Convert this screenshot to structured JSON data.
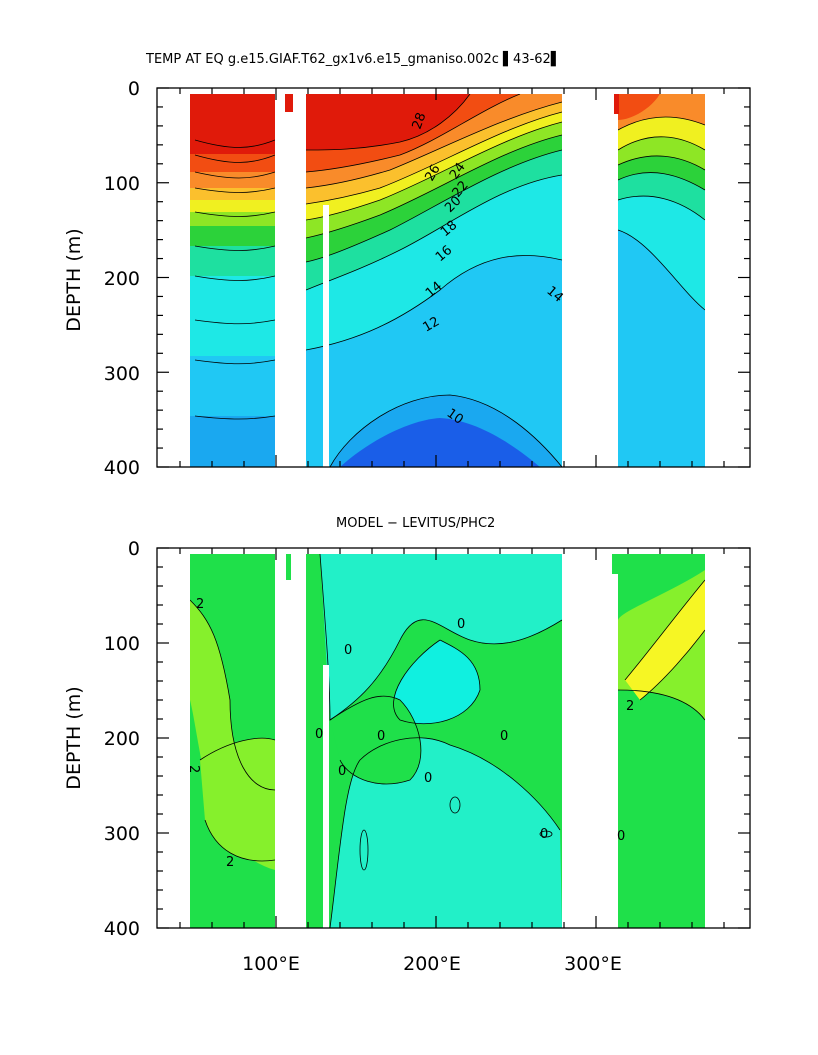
{
  "chart_data": [
    {
      "type": "contour",
      "title": "TEMP AT EQ g.e15.GIAF.T62_gx1v6.e15_gmaniso.002c ▌43-62▌",
      "ylabel": "DEPTH (m)",
      "ylim": [
        0,
        400
      ],
      "y_inverted": true,
      "y_ticks": [
        "0",
        "100",
        "200",
        "300",
        "400"
      ],
      "x_tick_labels": [],
      "land_gaps": [
        [
          98,
          120
        ],
        [
          278,
          315
        ]
      ],
      "bands": [
        {
          "depth_top": 0,
          "depth_bottom": 60,
          "temp": 28,
          "color": "#e01a0a"
        },
        {
          "depth_top": 60,
          "depth_bottom": 90,
          "temp": 26,
          "color": "#f24d12"
        },
        {
          "depth_top": 90,
          "depth_bottom": 110,
          "temp": 24,
          "color": "#f98b2a"
        },
        {
          "depth_top": 110,
          "depth_bottom": 120,
          "temp": 22,
          "color": "#fbc02d"
        },
        {
          "depth_top": 120,
          "depth_bottom": 130,
          "temp": 20,
          "color": "#f0f020"
        },
        {
          "depth_top": 130,
          "depth_bottom": 145,
          "temp": 18,
          "color": "#8ee625"
        },
        {
          "depth_top": 145,
          "depth_bottom": 160,
          "temp": 17,
          "color": "#2cd23a"
        },
        {
          "depth_top": 160,
          "depth_bottom": 190,
          "temp": 16,
          "color": "#1ee0a0"
        },
        {
          "depth_top": 190,
          "depth_bottom": 240,
          "temp": 14,
          "color": "#1ee8e6"
        },
        {
          "depth_top": 240,
          "depth_bottom": 290,
          "temp": 13,
          "color": "#20c8f4"
        },
        {
          "depth_top": 290,
          "depth_bottom": 340,
          "temp": 12,
          "color": "#1aa8f0"
        },
        {
          "depth_top": 340,
          "depth_bottom": 400,
          "temp": 11,
          "color": "#187ae8"
        }
      ],
      "contour_labels": [
        "28",
        "26",
        "24",
        "22",
        "20",
        "18",
        "16",
        "14",
        "12",
        "10",
        "14"
      ]
    },
    {
      "type": "contour",
      "title": "MODEL − LEVITUS/PHC2",
      "ylabel": "DEPTH (m)",
      "ylim": [
        0,
        400
      ],
      "y_inverted": true,
      "y_ticks": [
        "0",
        "100",
        "200",
        "300",
        "400"
      ],
      "x_tick_labels": [
        "100°E",
        "200°E",
        "300°E"
      ],
      "land_gaps": [
        [
          98,
          120
        ],
        [
          278,
          315
        ]
      ],
      "colors": {
        "base": "#1fe04a",
        "anomaly_pos": "#86f02c",
        "anomaly_neg": "#22f0c8",
        "anomaly_strong": "#f6f624"
      },
      "contour_labels": [
        "2",
        "0",
        "0",
        "0",
        "0",
        "0",
        "2",
        "2",
        "0",
        "0",
        "0",
        "2",
        "0"
      ]
    }
  ]
}
